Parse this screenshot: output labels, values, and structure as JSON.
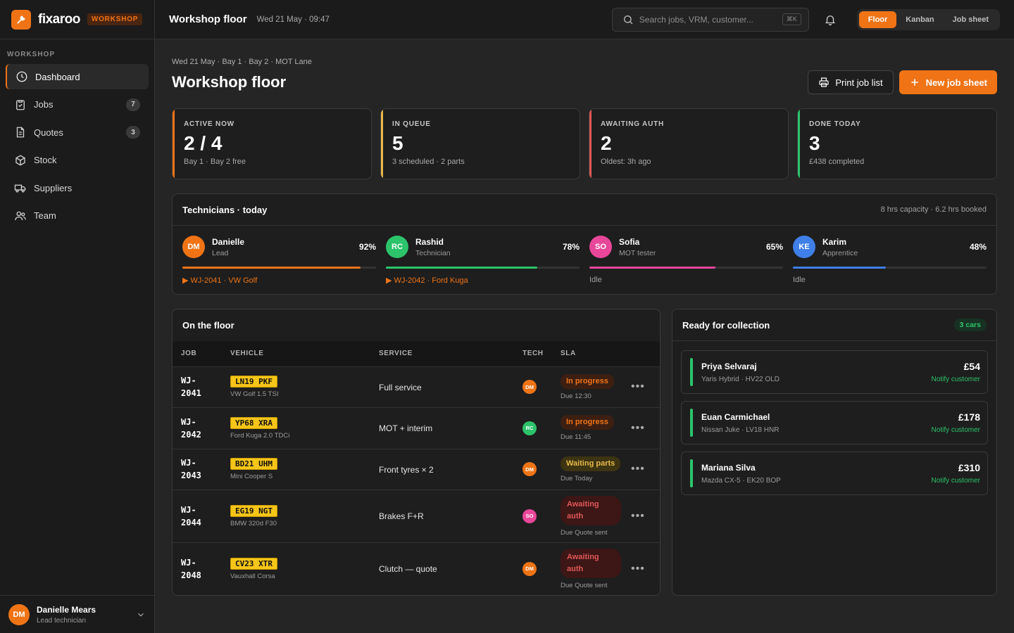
{
  "brand": {
    "name": "fixaroo",
    "badge": "WORKSHOP"
  },
  "sidebar": {
    "heading": "WORKSHOP",
    "items": [
      {
        "label": "Dashboard",
        "icon": "clock-icon",
        "count": null
      },
      {
        "label": "Jobs",
        "icon": "clipboard-icon",
        "count": "7"
      },
      {
        "label": "Quotes",
        "icon": "document-icon",
        "count": "3"
      },
      {
        "label": "Stock",
        "icon": "box-icon",
        "count": null
      },
      {
        "label": "Suppliers",
        "icon": "truck-icon",
        "count": null
      },
      {
        "label": "Team",
        "icon": "users-icon",
        "count": null
      }
    ],
    "user": {
      "initials": "DM",
      "name": "Danielle Mears",
      "role": "Lead technician"
    }
  },
  "topbar": {
    "title": "Workshop floor",
    "date": "Wed 21 May · 09:47",
    "search_placeholder": "Search jobs, VRM, customer...",
    "search_shortcut": "⌘K",
    "views": [
      "Floor",
      "Kanban",
      "Job sheet"
    ],
    "active_view": "Floor"
  },
  "page": {
    "breadcrumb": "Wed 21 May · Bay 1 · Bay 2 · MOT Lane",
    "title": "Workshop floor",
    "print_label": "Print job list",
    "new_label": "New job sheet"
  },
  "stats": [
    {
      "label": "ACTIVE NOW",
      "value": "2 / 4",
      "sub": "Bay 1 · Bay 2 free",
      "accent": "#f07416"
    },
    {
      "label": "IN QUEUE",
      "value": "5",
      "sub": "3 scheduled · 2 parts",
      "accent": "#e8b84a"
    },
    {
      "label": "AWAITING AUTH",
      "value": "2",
      "sub": "Oldest: 3h ago",
      "accent": "#e05858"
    },
    {
      "label": "DONE TODAY",
      "value": "3",
      "sub": "£438 completed",
      "accent": "#2cc36b"
    }
  ],
  "technicians": {
    "title": "Technicians · today",
    "meta": "8 hrs capacity · 6.2 hrs booked",
    "list": [
      {
        "initials": "DM",
        "name": "Danielle",
        "role": "Lead",
        "pct": "92%",
        "load": 0.92,
        "color": "#f07416",
        "job": "▶ WJ-2041 · VW Golf",
        "busy": true
      },
      {
        "initials": "RC",
        "name": "Rashid",
        "role": "Technician",
        "pct": "78%",
        "load": 0.78,
        "color": "#2cc36b",
        "job": "▶ WJ-2042 · Ford Kuga",
        "busy": true
      },
      {
        "initials": "SO",
        "name": "Sofia",
        "role": "MOT tester",
        "pct": "65%",
        "load": 0.65,
        "color": "#e8479a",
        "job": "Idle",
        "busy": false
      },
      {
        "initials": "KE",
        "name": "Karim",
        "role": "Apprentice",
        "pct": "48%",
        "load": 0.48,
        "color": "#3f7fe8",
        "job": "Idle",
        "busy": false
      }
    ]
  },
  "floor": {
    "title": "On the floor",
    "columns": [
      "JOB",
      "VEHICLE",
      "SERVICE",
      "TECH",
      "SLA"
    ],
    "rows": [
      {
        "job": [
          "WJ-",
          "2041"
        ],
        "plate": "LN19 PKF",
        "model": "VW Golf 1.5 TSI",
        "service": "Full service",
        "tech": "DM",
        "tech_color": "#f07416",
        "status": "In progress",
        "status_type": "progress",
        "due": "Due 12:30"
      },
      {
        "job": [
          "WJ-",
          "2042"
        ],
        "plate": "YP68 XRA",
        "model": "Ford Kuga 2.0 TDCi",
        "service": "MOT + interim",
        "tech": "RC",
        "tech_color": "#2cc36b",
        "status": "In progress",
        "status_type": "progress",
        "due": "Due 11:45"
      },
      {
        "job": [
          "WJ-",
          "2043"
        ],
        "plate": "BD21 UHM",
        "model": "Mini Cooper S",
        "service": "Front tyres × 2",
        "tech": "DM",
        "tech_color": "#f07416",
        "status": "Waiting parts",
        "status_type": "waiting",
        "due": "Due Today"
      },
      {
        "job": [
          "WJ-",
          "2044"
        ],
        "plate": "EG19 NGT",
        "model": "BMW 320d F30",
        "service": "Brakes F+R",
        "tech": "SO",
        "tech_color": "#e8479a",
        "status": "Awaiting auth",
        "status_type": "auth",
        "due": "Due Quote sent"
      },
      {
        "job": [
          "WJ-",
          "2048"
        ],
        "plate": "CV23 XTR",
        "model": "Vauxhall Corsa",
        "service": "Clutch — quote",
        "tech": "DM",
        "tech_color": "#f07416",
        "status": "Awaiting auth",
        "status_type": "auth",
        "due": "Due Quote sent"
      }
    ]
  },
  "ready": {
    "title": "Ready for collection",
    "count": "3 cars",
    "items": [
      {
        "name": "Priya Selvaraj",
        "car": "Yaris Hybrid · HV22 OLD",
        "price": "£54",
        "action": "Notify customer"
      },
      {
        "name": "Euan Carmichael",
        "car": "Nissan Juke · LV18 HNR",
        "price": "£178",
        "action": "Notify customer"
      },
      {
        "name": "Mariana Silva",
        "car": "Mazda CX-5 · EK20 BOP",
        "price": "£310",
        "action": "Notify customer"
      }
    ]
  }
}
